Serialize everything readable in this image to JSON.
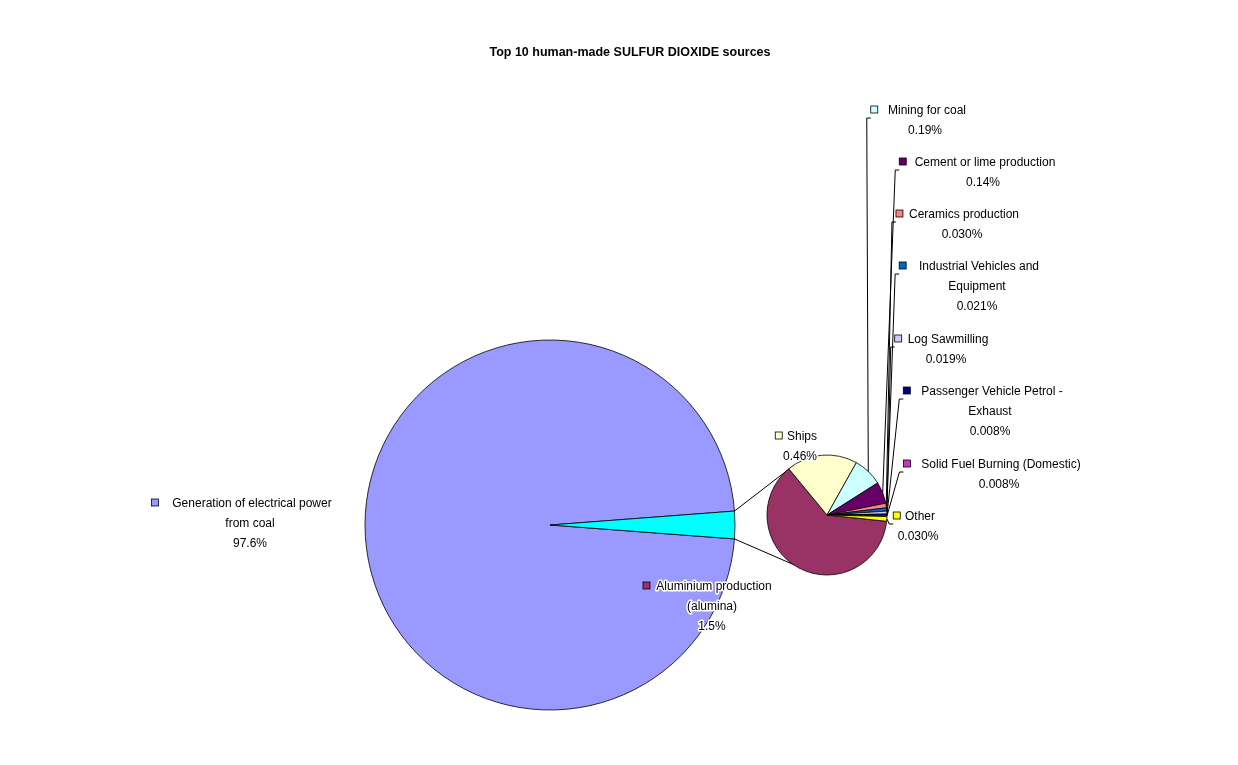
{
  "chart_data": [
    {
      "type": "pie",
      "title": "Top 10 human-made SULFUR DIOXIDE sources",
      "categories": [
        "Generation of electrical power from coal",
        null
      ],
      "values": [
        97.6,
        2.4
      ],
      "colors": [
        "#9999ff",
        "#00ffff"
      ],
      "value_labels": [
        "97.6%",
        null
      ],
      "legend": "left"
    },
    {
      "type": "pie",
      "categories": [
        "Aluminium production (alumina)",
        "Ships",
        "Mining for coal",
        "Cement or lime production",
        "Ceramics production",
        "Industrial Vehicles and Equipment",
        "Log Sawmilling",
        "Passenger Vehicle Petrol - Exhaust",
        "Solid Fuel Burning (Domestic)",
        "Other"
      ],
      "values": [
        1.5,
        0.46,
        0.19,
        0.14,
        0.03,
        0.021,
        0.019,
        0.008,
        0.008,
        0.03
      ],
      "colors": [
        "#993366",
        "#ffffcc",
        "#ccffff",
        "#660066",
        "#ff8080",
        "#0066cc",
        "#ccccff",
        "#000080",
        "#cc33cc",
        "#ffff00"
      ],
      "value_labels": [
        "1.5%",
        "0.46%",
        "0.19%",
        "0.14%",
        "0.030%",
        "0.021%",
        "0.019%",
        "0.008%",
        "0.008%",
        "0.030%"
      ],
      "legend": "right"
    }
  ]
}
